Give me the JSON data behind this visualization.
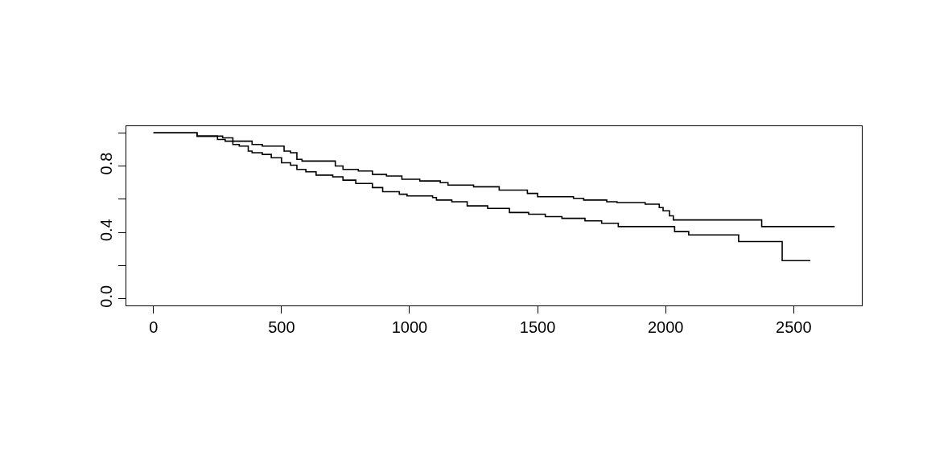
{
  "chart_data": {
    "type": "step",
    "series": [
      {
        "color": "#000000",
        "x": [
          0,
          170,
          270,
          310,
          385,
          425,
          510,
          535,
          560,
          580,
          710,
          740,
          800,
          855,
          910,
          970,
          1040,
          1120,
          1150,
          1250,
          1350,
          1460,
          1500,
          1640,
          1680,
          1770,
          1810,
          1920,
          1975,
          1990,
          2015,
          2030,
          2375,
          2660
        ],
        "values": [
          1.0,
          0.98,
          0.97,
          0.95,
          0.93,
          0.92,
          0.89,
          0.88,
          0.84,
          0.83,
          0.8,
          0.78,
          0.77,
          0.75,
          0.74,
          0.72,
          0.71,
          0.7,
          0.685,
          0.675,
          0.655,
          0.635,
          0.615,
          0.605,
          0.595,
          0.585,
          0.58,
          0.57,
          0.55,
          0.53,
          0.5,
          0.475,
          0.435,
          0.435
        ]
      },
      {
        "color": "#000000",
        "x": [
          0,
          170,
          250,
          280,
          310,
          335,
          370,
          385,
          425,
          460,
          500,
          535,
          560,
          595,
          635,
          700,
          740,
          790,
          855,
          895,
          960,
          990,
          1090,
          1105,
          1165,
          1225,
          1305,
          1390,
          1465,
          1530,
          1595,
          1685,
          1750,
          1815,
          2035,
          2090,
          2285,
          2455,
          2565
        ],
        "values": [
          1.0,
          0.98,
          0.96,
          0.95,
          0.93,
          0.92,
          0.89,
          0.88,
          0.87,
          0.85,
          0.82,
          0.805,
          0.78,
          0.765,
          0.745,
          0.735,
          0.715,
          0.695,
          0.67,
          0.645,
          0.63,
          0.62,
          0.61,
          0.595,
          0.585,
          0.56,
          0.545,
          0.52,
          0.51,
          0.495,
          0.485,
          0.47,
          0.455,
          0.435,
          0.405,
          0.385,
          0.345,
          0.23,
          0.23
        ]
      }
    ],
    "xlim": [
      -106,
      2766
    ],
    "xticks": [
      0,
      500,
      1000,
      1500,
      2000,
      2500
    ],
    "ylim": [
      -0.04,
      1.04
    ],
    "yticks": [
      {
        "value": 0.0,
        "label": "0.0"
      },
      {
        "value": 0.2,
        "label": null
      },
      {
        "value": 0.4,
        "label": "0.4"
      },
      {
        "value": 0.6,
        "label": null
      },
      {
        "value": 0.8,
        "label": "0.8"
      },
      {
        "value": 1.0,
        "label": null
      }
    ],
    "marker": "none",
    "line_style": "solid"
  }
}
